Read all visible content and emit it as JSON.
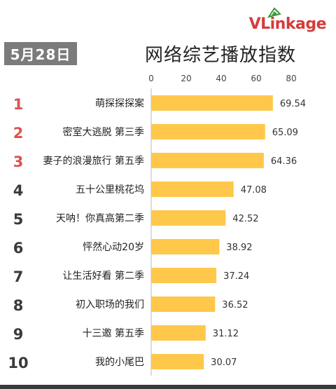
{
  "logo": {
    "text": "VLinkage"
  },
  "date_badge": "5月28日",
  "colors": {
    "bar": "#FFC84A",
    "rank_top3": "#D9534F",
    "rank_other": "#3a3a3a",
    "date_badge_bg": "#7b7b7b",
    "logo": "#D63B3A"
  },
  "chart_data": {
    "type": "bar",
    "orientation": "horizontal",
    "title": "网络综艺播放指数",
    "xlabel": "",
    "ylabel": "",
    "xlim": [
      0,
      80
    ],
    "x_ticks": [
      "0",
      "20",
      "40",
      "60",
      "80"
    ],
    "grid": false,
    "ranks": [
      "1",
      "2",
      "3",
      "4",
      "5",
      "6",
      "7",
      "8",
      "9",
      "10"
    ],
    "categories": [
      "萌探探探案",
      "密室大逃脱 第三季",
      "妻子的浪漫旅行 第五季",
      "五十公里桃花坞",
      "天呐！你真高第二季",
      "怦然心动20岁",
      "让生活好看 第二季",
      "初入职场的我们",
      "十三邀 第五季",
      "我的小尾巴"
    ],
    "values": [
      69.54,
      65.09,
      64.36,
      47.08,
      42.52,
      38.92,
      37.24,
      36.52,
      31.12,
      30.07
    ],
    "value_labels": [
      "69.54",
      "65.09",
      "64.36",
      "47.08",
      "42.52",
      "38.92",
      "37.24",
      "36.52",
      "31.12",
      "30.07"
    ]
  }
}
